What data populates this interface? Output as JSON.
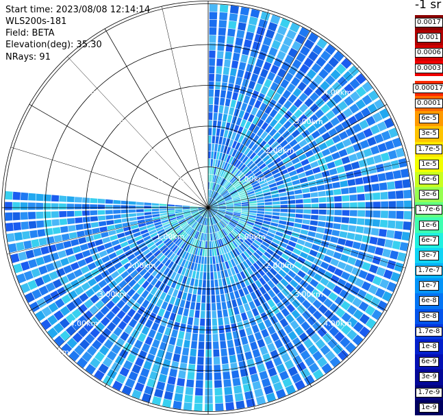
{
  "info": {
    "start_time": "Start time: 2023/08/08 12:14:14",
    "instrument": "WLS200s-181",
    "field": "Field: BETA",
    "elevation": "Elevation(deg): 35.30",
    "nrays": "NRays: 91"
  },
  "colorbar": {
    "title": "-1 sr",
    "upper_labels": [
      "0.0017",
      "0.001",
      "0.0006",
      "0.0003"
    ],
    "upper_colors": [
      "#8b0000",
      "#b00000",
      "#d40000",
      "#f00000"
    ],
    "lower_labels": [
      "0.00017",
      "0.0001",
      "6e-5",
      "3e-5",
      "1.7e-5",
      "1e-5",
      "6e-6",
      "3e-6",
      "1.7e-6",
      "1e-6",
      "6e-7",
      "3e-7",
      "1.7e-7",
      "1e-7",
      "6e-8",
      "3e-8",
      "1.7e-8",
      "1e-8",
      "6e-9",
      "3e-9",
      "1.7e-9",
      "1e-9"
    ],
    "lower_colors": [
      "#ff2a00",
      "#ff6a00",
      "#ff9a00",
      "#ffc400",
      "#ffe600",
      "#f2ff00",
      "#c8ff20",
      "#96ff50",
      "#64ff80",
      "#3effb0",
      "#20f0e0",
      "#10d4f4",
      "#08b4f8",
      "#0494f8",
      "#0474f4",
      "#0454ec",
      "#0438e0",
      "#0420cc",
      "#0410b4",
      "#040898",
      "#04047c",
      "#000060"
    ]
  },
  "chart_data": {
    "type": "heatmap",
    "projection": "polar PPI scan",
    "field": "BETA",
    "units": "sr-1 (log scale)",
    "range_rings_km": [
      1,
      2,
      3,
      4,
      5
    ],
    "ring_labels": [
      "1.00km",
      "2.00km",
      "3.00km",
      "4.00km",
      "5.00km"
    ],
    "max_range_km": 5.0,
    "azimuth_coverage_deg": [
      0,
      275
    ],
    "n_rays": 91,
    "spoke_step_deg": 30,
    "typical_value_range": [
      "6e-9",
      "1.7e-7"
    ],
    "dominant_value": "3e-8"
  }
}
